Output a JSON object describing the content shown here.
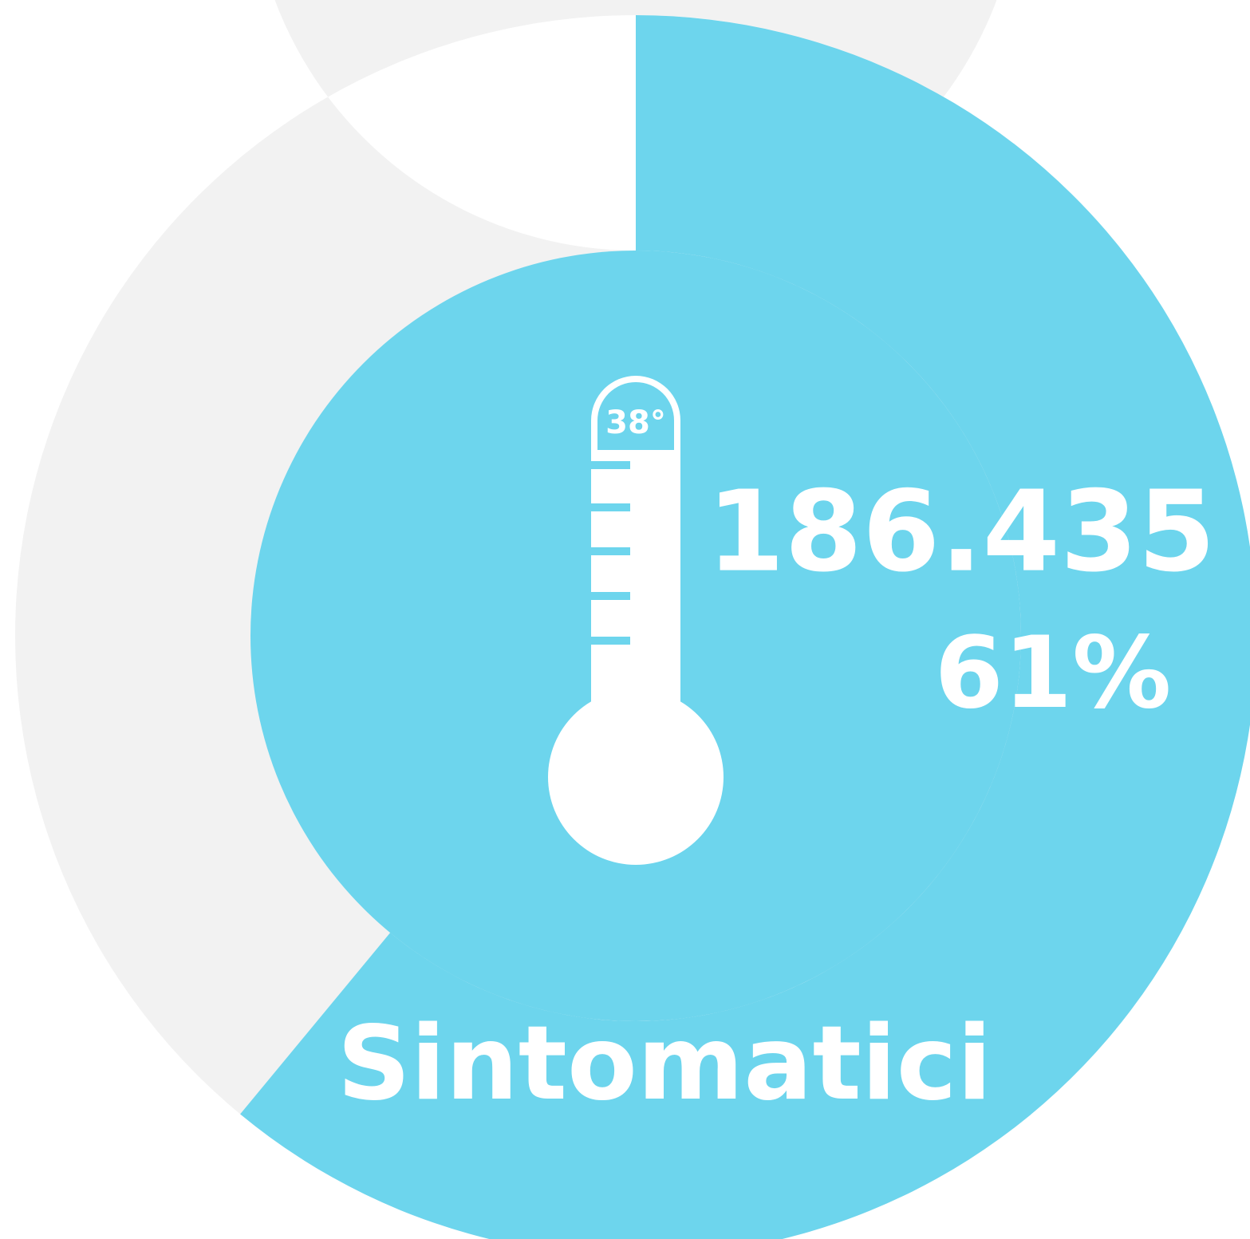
{
  "chart_data": {
    "type": "donut",
    "label": "Sintomatici",
    "values": [
      61
    ],
    "value_labels": [
      "61%"
    ],
    "count": 186435,
    "count_label": "186.435",
    "icon_label": "38°",
    "color": "#6dd5ed",
    "track_color": "#f2f2f2",
    "max": 100
  }
}
